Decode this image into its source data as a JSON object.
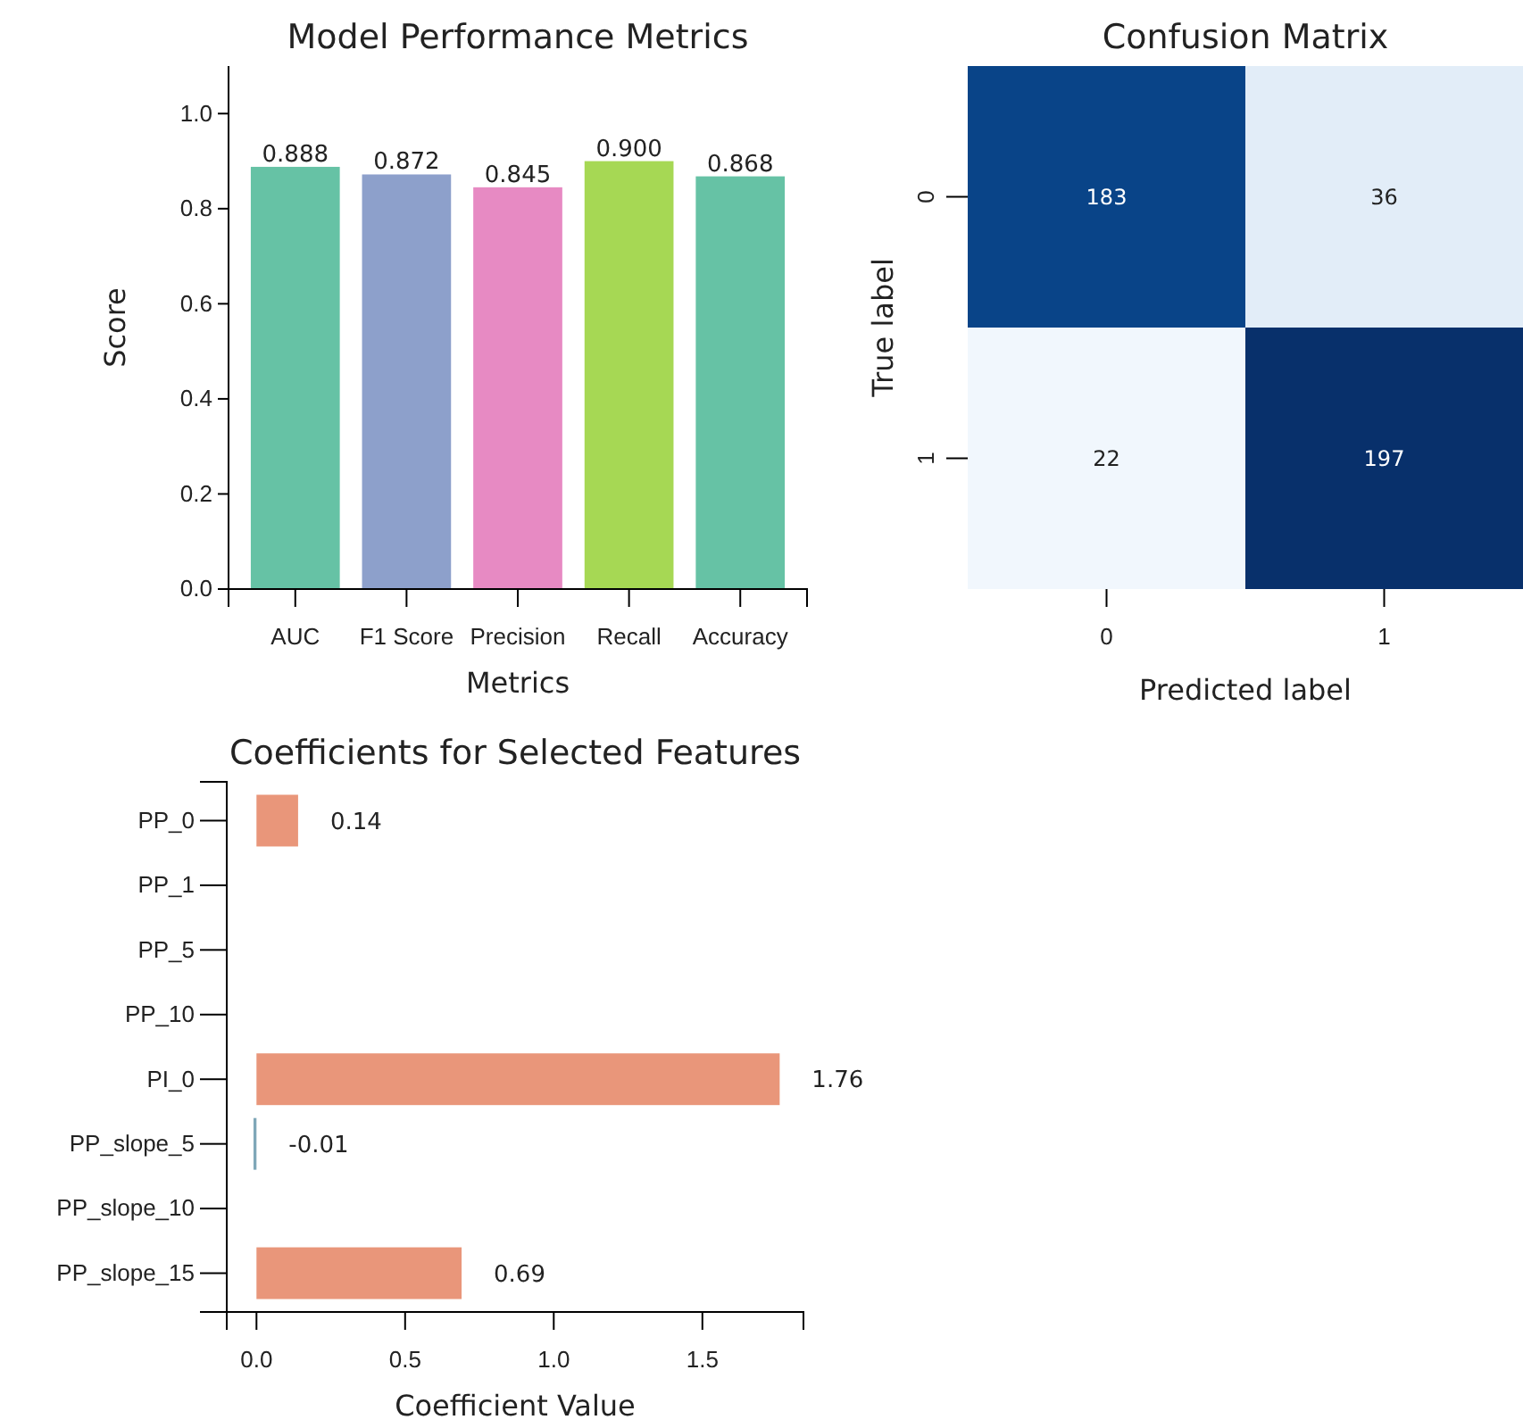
{
  "chart_data": [
    {
      "type": "bar",
      "title": "Model Performance Metrics",
      "xlabel": "Metrics",
      "ylabel": "Score",
      "categories": [
        "AUC",
        "F1 Score",
        "Precision",
        "Recall",
        "Accuracy"
      ],
      "values": [
        0.888,
        0.872,
        0.845,
        0.9,
        0.868
      ],
      "colors": [
        "#66c2a5",
        "#8da0cb",
        "#e78ac3",
        "#a6d854",
        "#66c2a5"
      ],
      "ylim": [
        0,
        1.1
      ],
      "yticks": [
        {
          "value": 0,
          "label": "0.0"
        },
        {
          "value": 0.2,
          "label": "0.2"
        },
        {
          "value": 0.4,
          "label": "0.4"
        },
        {
          "value": 0.6,
          "label": "0.6"
        },
        {
          "value": 0.8,
          "label": "0.8"
        },
        {
          "value": 1,
          "label": "1.0"
        }
      ],
      "value_labels": [
        "0.888",
        "0.872",
        "0.845",
        "0.900",
        "0.868"
      ],
      "grid": false
    },
    {
      "type": "heatmap",
      "title": "Confusion Matrix",
      "xlabel": "Predicted label",
      "ylabel": "True label",
      "categories": [
        "0",
        "1"
      ],
      "y_categories": [
        "0",
        "1"
      ],
      "cells": [
        [
          183,
          36
        ],
        [
          22,
          197
        ]
      ],
      "data_labels": true
    },
    {
      "type": "bar",
      "orientation": "horizontal",
      "title": "Coefficients for Selected Features",
      "xlabel": "Coefficient Value",
      "categories": [
        "PP_0",
        "PP_1",
        "PP_5",
        "PP_10",
        "PI_0",
        "PP_slope_5",
        "PP_slope_10",
        "PP_slope_15"
      ],
      "values": [
        0.14,
        0,
        0,
        0,
        1.76,
        -0.01,
        0,
        0.69
      ],
      "colors": [
        "#e9967a",
        "#e9967a",
        "#e9967a",
        "#e9967a",
        "#e9967a",
        "#7fa7b8",
        "#e9967a",
        "#e9967a"
      ],
      "value_labels": [
        "0.14",
        null,
        null,
        null,
        "1.76",
        "-0.01",
        null,
        "0.69"
      ],
      "xlim": [
        -0.1,
        1.84
      ],
      "xticks": [
        {
          "value": 0,
          "label": "0.0"
        },
        {
          "value": 0.5,
          "label": "0.5"
        },
        {
          "value": 1,
          "label": "1.0"
        },
        {
          "value": 1.5,
          "label": "1.5"
        }
      ],
      "grid": false
    }
  ]
}
